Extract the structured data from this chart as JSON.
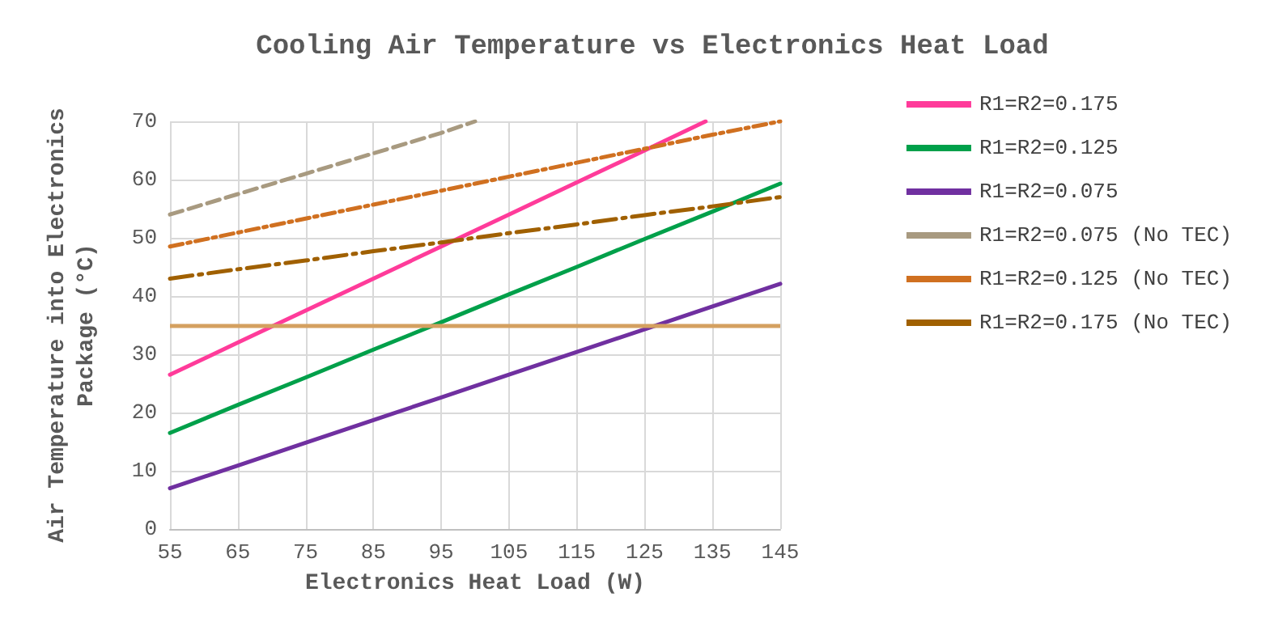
{
  "chart_data": {
    "type": "line",
    "title": "Cooling Air Temperature vs Electronics Heat Load",
    "xlabel": "Electronics Heat Load (W)",
    "ylabel": "Air Temperature into Electronics\nPackage (°C)",
    "x": [
      55,
      65,
      75,
      85,
      95,
      105,
      115,
      125,
      135,
      145
    ],
    "series": [
      {
        "name": "R1=R2=0.175",
        "color": "#ff3b9a",
        "line_style": "solid",
        "x": [
          55,
          65,
          75,
          85,
          95,
          105,
          115,
          125,
          134
        ],
        "values": [
          26.5,
          32,
          37.5,
          43,
          48.5,
          54,
          59.5,
          65,
          70
        ]
      },
      {
        "name": "R1=R2=0.125",
        "color": "#00a04a",
        "line_style": "solid",
        "values": [
          16.5,
          21.3,
          26,
          30.8,
          35.5,
          40.3,
          45,
          49.8,
          54.5,
          59.3
        ]
      },
      {
        "name": "R1=R2=0.075",
        "color": "#7030a0",
        "line_style": "solid",
        "values": [
          7,
          10.9,
          14.8,
          18.7,
          22.6,
          26.5,
          30.4,
          34.3,
          38.2,
          42.1
        ]
      },
      {
        "name": "R1=R2=0.075 (No TEC)",
        "color": "#a89a80",
        "line_style": "dashed",
        "x": [
          55,
          65,
          75,
          85,
          95,
          100
        ],
        "values": [
          54,
          57.5,
          61,
          64.5,
          68,
          70
        ]
      },
      {
        "name": "R1=R2=0.125 (No TEC)",
        "color": "#d07020",
        "line_style": "dashdot",
        "values": [
          48.5,
          50.9,
          53.3,
          55.7,
          58.1,
          60.5,
          62.9,
          65.3,
          67.7,
          70
        ]
      },
      {
        "name": "R1=R2=0.175 (No TEC)",
        "color": "#a06000",
        "line_style": "longdashdot",
        "values": [
          43,
          44.6,
          46.1,
          47.7,
          49.2,
          50.8,
          52.3,
          53.9,
          55.4,
          57
        ]
      }
    ],
    "ref_lines": [
      {
        "axis": "y",
        "value": 35,
        "color": "#d4a060"
      }
    ],
    "xlim": [
      55,
      145
    ],
    "xticks": [
      55,
      65,
      75,
      85,
      95,
      105,
      115,
      125,
      135,
      145
    ],
    "ylim": [
      0,
      70
    ],
    "yticks": [
      0,
      10,
      20,
      30,
      40,
      50,
      60,
      70
    ],
    "grid": true,
    "legend": "right",
    "marker": "none"
  }
}
